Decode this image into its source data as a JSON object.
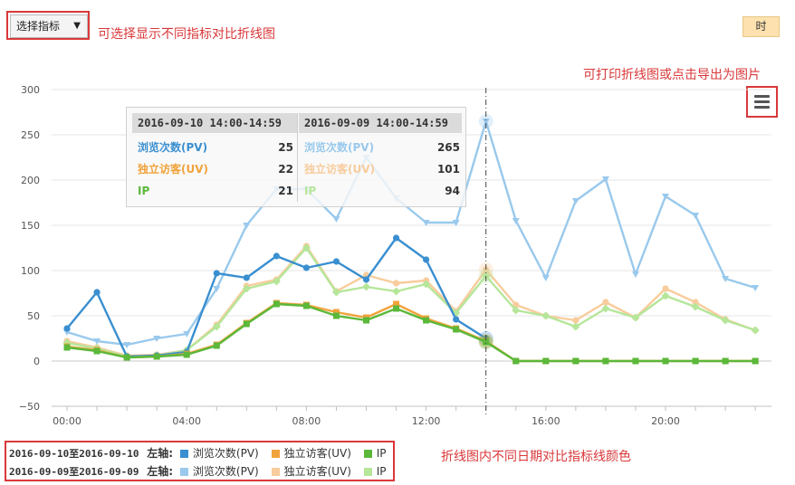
{
  "controls": {
    "select_label": "选择指标",
    "select_arrow": "▼",
    "hour_button": "时"
  },
  "annotations": {
    "select_note": "可选择显示不同指标对比折线图",
    "export_note": "可打印折线图或点击导出为图片",
    "color_note": "折线图内不同日期对比指标线颜色"
  },
  "colors": {
    "pv_today": "#3a8fd0",
    "uv_today": "#f0a33b",
    "ip_today": "#5bb83a",
    "pv_prev": "#99c9ec",
    "uv_prev": "#f8cc9c",
    "ip_prev": "#b5e69a",
    "annotation": "#d9383a"
  },
  "tooltip": {
    "periods": [
      "2016-09-10 14:00-14:59",
      "2016-09-09 14:00-14:59"
    ],
    "rows": [
      {
        "label": "浏览次数(PV)",
        "value_a": "25",
        "value_b": "265"
      },
      {
        "label": "独立访客(UV)",
        "value_a": "22",
        "value_b": "101"
      },
      {
        "label": "IP",
        "value_a": "21",
        "value_b": "94"
      }
    ]
  },
  "legend": {
    "axis_label": "左轴:",
    "groups": [
      {
        "period": "2016-09-10至2016-09-10",
        "items": [
          "浏览次数(PV)",
          "独立访客(UV)",
          "IP"
        ]
      },
      {
        "period": "2016-09-09至2016-09-09",
        "items": [
          "浏览次数(PV)",
          "独立访客(UV)",
          "IP"
        ]
      }
    ]
  },
  "chart_data": {
    "type": "line",
    "y_ticks": [
      "300",
      "250",
      "200",
      "150",
      "100",
      "50",
      "0",
      "−50"
    ],
    "x_tick_labels": [
      "00:00",
      "04:00",
      "08:00",
      "12:00",
      "16:00",
      "20:00"
    ],
    "ylim": [
      -50,
      300
    ],
    "x": [
      0,
      1,
      2,
      3,
      4,
      5,
      6,
      7,
      8,
      9,
      10,
      11,
      12,
      13,
      14,
      15,
      16,
      17,
      18,
      19,
      20,
      21,
      22,
      23
    ],
    "crosshair_x": 14,
    "series": [
      {
        "name": "浏览次数(PV)",
        "group": 0,
        "color": "pv_prev",
        "marker": "triangle",
        "values": [
          32,
          22,
          18,
          25,
          30,
          80,
          150,
          190,
          190,
          157,
          225,
          180,
          153,
          153,
          265,
          155,
          92,
          177,
          201,
          96,
          182,
          161,
          91,
          81
        ]
      },
      {
        "name": "独立访客(UV)",
        "group": 0,
        "color": "uv_prev",
        "marker": "circle",
        "values": [
          22,
          15,
          6,
          7,
          12,
          40,
          83,
          90,
          127,
          77,
          95,
          86,
          89,
          55,
          101,
          62,
          50,
          45,
          65,
          48,
          80,
          65,
          46,
          34
        ]
      },
      {
        "name": "IP",
        "group": 0,
        "color": "ip_prev",
        "marker": "diamond",
        "values": [
          20,
          14,
          5,
          6,
          12,
          38,
          80,
          88,
          125,
          76,
          82,
          77,
          85,
          53,
          94,
          56,
          50,
          38,
          58,
          48,
          72,
          60,
          45,
          34
        ]
      },
      {
        "name": "浏览次数(PV)",
        "group": 1,
        "color": "pv_today",
        "marker": "circle",
        "values": [
          36,
          76,
          5,
          6,
          10,
          97,
          92,
          116,
          103,
          110,
          90,
          136,
          112,
          46,
          25,
          null,
          null,
          null,
          null,
          null,
          null,
          null,
          null,
          null
        ]
      },
      {
        "name": "独立访客(UV)",
        "group": 1,
        "color": "uv_today",
        "marker": "square",
        "values": [
          16,
          12,
          4,
          5,
          8,
          18,
          42,
          64,
          62,
          54,
          48,
          63,
          47,
          36,
          22,
          0,
          0,
          0,
          0,
          0,
          0,
          0,
          0,
          0
        ]
      },
      {
        "name": "IP",
        "group": 1,
        "color": "ip_today",
        "marker": "square",
        "values": [
          15,
          11,
          4,
          5,
          7,
          17,
          41,
          63,
          61,
          50,
          45,
          58,
          45,
          35,
          21,
          0,
          0,
          0,
          0,
          0,
          0,
          0,
          0,
          0
        ]
      }
    ]
  }
}
